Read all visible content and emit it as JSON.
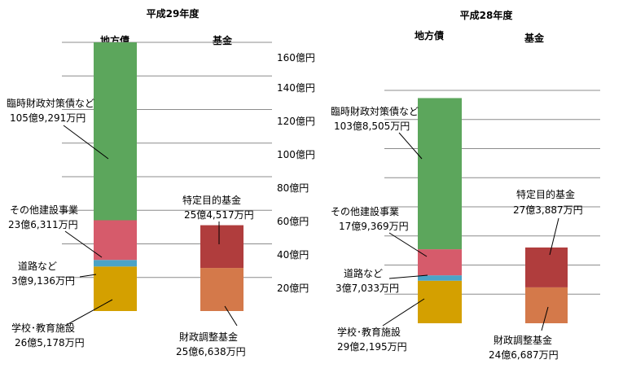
{
  "chart_data": [
    {
      "type": "bar",
      "stacked": true,
      "title": "平成29年度",
      "categories": [
        "地方債",
        "基金"
      ],
      "y_tick_labels": [
        "20億円",
        "40億円",
        "60億円",
        "80億円",
        "100億円",
        "120億円",
        "140億円",
        "160億円"
      ],
      "ylim": [
        0,
        160
      ],
      "y_ticks": [
        20,
        40,
        60,
        80,
        100,
        120,
        140,
        160
      ],
      "grid": true,
      "colors": {
        "school": "#d4a000",
        "road": "#4ba3c7",
        "other": "#d65b6b",
        "temp": "#5ca65c",
        "adjust": "#d4794a",
        "special": "#b03d3d"
      },
      "segments": [
        {
          "key": "school",
          "category": "地方債",
          "value": 26.5178,
          "label": "学校･教育施設",
          "amount": "26億5,178万円"
        },
        {
          "key": "road",
          "category": "地方債",
          "value": 3.9136,
          "label": "道路など",
          "amount": "3億9,136万円"
        },
        {
          "key": "other",
          "category": "地方債",
          "value": 23.6311,
          "label": "その他建設事業",
          "amount": "23億6,311万円"
        },
        {
          "key": "temp",
          "category": "地方債",
          "value": 105.9291,
          "label": "臨時財政対策債など",
          "amount": "105億9,291万円"
        },
        {
          "key": "adjust",
          "category": "基金",
          "value": 25.6638,
          "label": "財政調整基金",
          "amount": "25億6,638万円"
        },
        {
          "key": "special",
          "category": "基金",
          "value": 25.4517,
          "label": "特定目的基金",
          "amount": "25億4,517万円"
        }
      ]
    },
    {
      "type": "bar",
      "stacked": true,
      "title": "平成28年度",
      "categories": [
        "地方債",
        "基金"
      ],
      "ylim": [
        0,
        160
      ],
      "y_ticks": [
        20,
        40,
        60,
        80,
        100,
        120,
        140,
        160
      ],
      "grid": true,
      "colors": {
        "school": "#d4a000",
        "road": "#4ba3c7",
        "other": "#d65b6b",
        "temp": "#5ca65c",
        "adjust": "#d4794a",
        "special": "#b03d3d"
      },
      "segments": [
        {
          "key": "school",
          "category": "地方債",
          "value": 29.2195,
          "label": "学校･教育施設",
          "amount": "29億2,195万円"
        },
        {
          "key": "road",
          "category": "地方債",
          "value": 3.7033,
          "label": "道路など",
          "amount": "3億7,033万円"
        },
        {
          "key": "other",
          "category": "地方債",
          "value": 17.9369,
          "label": "その他建設事業",
          "amount": "17億9,369万円"
        },
        {
          "key": "temp",
          "category": "地方債",
          "value": 103.8505,
          "label": "臨時財政対策債など",
          "amount": "103億8,505万円"
        },
        {
          "key": "adjust",
          "category": "基金",
          "value": 24.6687,
          "label": "財政調整基金",
          "amount": "24億6,687万円"
        },
        {
          "key": "special",
          "category": "基金",
          "value": 27.3887,
          "label": "特定目的基金",
          "amount": "27億3,887万円"
        }
      ]
    }
  ]
}
